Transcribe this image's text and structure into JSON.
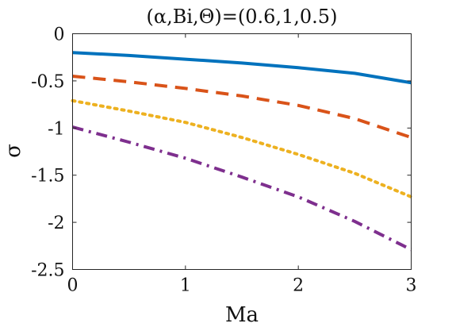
{
  "chart_data": {
    "type": "line",
    "title": "(α,Bi,Θ)=(0.6,1,0.5)",
    "xlabel": "Ma",
    "ylabel": "σ",
    "xlim": [
      0,
      3
    ],
    "ylim": [
      -2.5,
      0
    ],
    "xticks": [
      0,
      1,
      2,
      3
    ],
    "xtick_labels": [
      "0",
      "1",
      "2",
      "3"
    ],
    "yticks": [
      0,
      -0.5,
      -1,
      -1.5,
      -2,
      -2.5
    ],
    "ytick_labels": [
      "0",
      "-0.5",
      "-1",
      "-1.5",
      "-2",
      "-2.5"
    ],
    "grid": false,
    "legend": "none",
    "x": [
      0,
      0.5,
      1,
      1.5,
      2,
      2.5,
      3
    ],
    "series": [
      {
        "color": "#0072BD",
        "line_style": "solid",
        "values": [
          -0.2,
          -0.23,
          -0.27,
          -0.31,
          -0.36,
          -0.42,
          -0.52
        ]
      },
      {
        "color": "#D95319",
        "line_style": "dashed",
        "values": [
          -0.45,
          -0.51,
          -0.58,
          -0.66,
          -0.76,
          -0.9,
          -1.1
        ]
      },
      {
        "color": "#EDB120",
        "line_style": "dotted",
        "values": [
          -0.71,
          -0.82,
          -0.94,
          -1.1,
          -1.28,
          -1.48,
          -1.73
        ]
      },
      {
        "color": "#7E2F8E",
        "line_style": "dashdot",
        "values": [
          -0.99,
          -1.15,
          -1.32,
          -1.52,
          -1.73,
          -1.99,
          -2.29
        ]
      }
    ]
  }
}
